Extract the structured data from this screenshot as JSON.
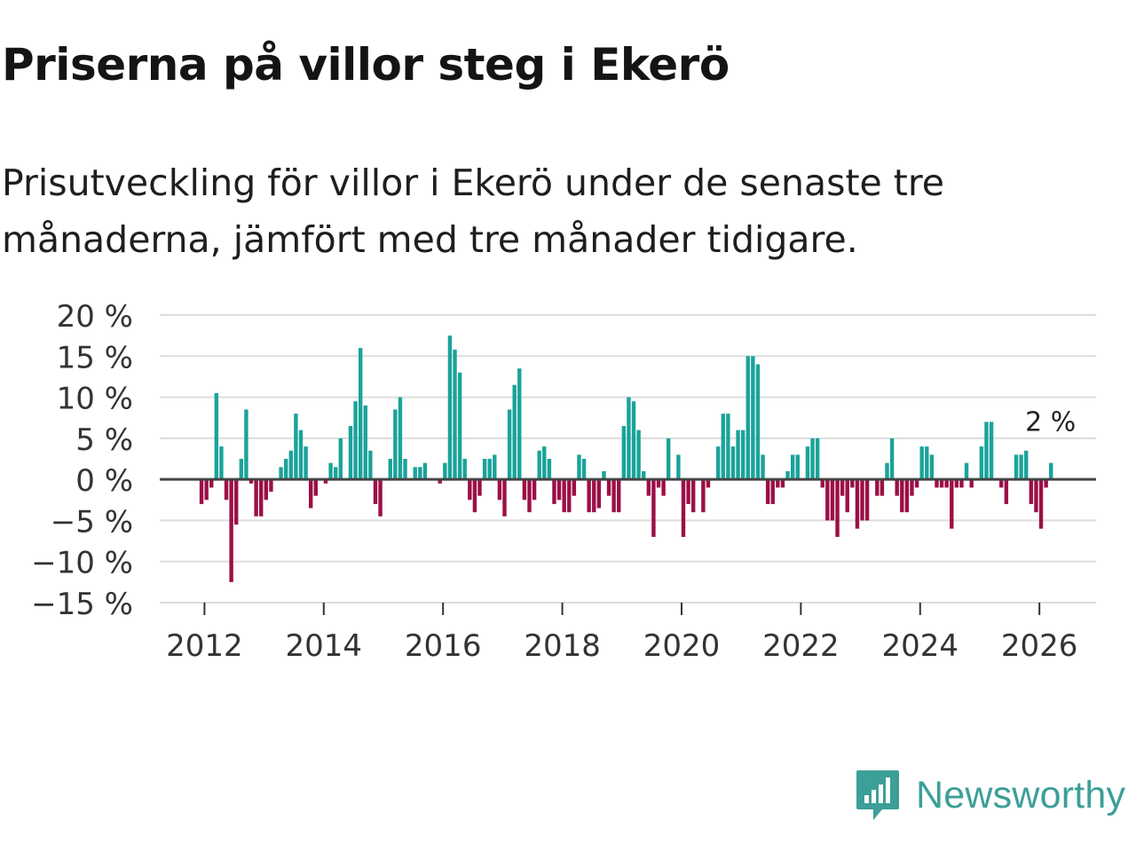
{
  "title": "Priserna på villor steg i Ekerö",
  "subtitle": "Prisutveckling för villor i Ekerö under de senaste tre månaderna, jämfört med tre månader tidigare.",
  "brand": {
    "name": "Newsworthy",
    "icon": "newsworthy-logo-icon"
  },
  "colors": {
    "positive": "#1aa39a",
    "negative": "#9c0f46",
    "grid": "#dddddd",
    "zero_line": "#444444",
    "brand": "#3c9f98"
  },
  "chart_data": {
    "type": "bar",
    "title": "Priserna på villor steg i Ekerö",
    "xlabel": "",
    "ylabel": "",
    "unit": "%",
    "start_year": 2011.95,
    "step_years": 0.0833,
    "xlim": [
      2011.25,
      2026.95
    ],
    "ylim": [
      -15,
      20
    ],
    "yticks": [
      20,
      15,
      10,
      5,
      0,
      -5,
      -10,
      -15
    ],
    "ytick_labels": [
      "20 %",
      "15 %",
      "10 %",
      "5 %",
      "0 %",
      "−5 %",
      "−10 %",
      "−15 %"
    ],
    "xticks": [
      2012,
      2014,
      2016,
      2018,
      2020,
      2022,
      2024,
      2026
    ],
    "xtick_labels": [
      "2012",
      "2014",
      "2016",
      "2018",
      "2020",
      "2022",
      "2024",
      "2026"
    ],
    "annotation": {
      "label": "2 %",
      "value": 2
    },
    "values": [
      -3,
      -2.5,
      -1,
      10.5,
      4,
      -2.5,
      -12.5,
      -5.5,
      2.5,
      8.5,
      -0.5,
      -4.5,
      -4.5,
      -2.5,
      -1.5,
      0,
      1.5,
      2.5,
      3.5,
      8,
      6,
      4,
      -3.5,
      -2,
      0,
      -0.5,
      2,
      1.5,
      5,
      0,
      6.5,
      9.5,
      16,
      9,
      3.5,
      -3,
      -4.5,
      0,
      2.5,
      8.5,
      10,
      2.5,
      0,
      1.5,
      1.5,
      2,
      0,
      0,
      -0.5,
      2,
      17.5,
      15.8,
      13,
      2.5,
      -2.5,
      -4,
      -2,
      2.5,
      2.5,
      3,
      -2.5,
      -4.5,
      8.5,
      11.5,
      13.5,
      -2.5,
      -4,
      -2.5,
      3.5,
      4,
      2.5,
      -3,
      -2.5,
      -4,
      -4,
      -2,
      3,
      2.5,
      -4,
      -4,
      -3.5,
      1,
      -2,
      -4,
      -4,
      6.5,
      10,
      9.5,
      6,
      1,
      -2,
      -7,
      -1,
      -2,
      5,
      0,
      3,
      -7,
      -3,
      -4,
      0,
      -4,
      -1,
      0,
      4,
      8,
      8,
      4,
      6,
      6,
      15,
      15,
      14,
      3,
      -3,
      -3,
      -1,
      -1,
      1,
      3,
      3,
      0,
      4,
      5,
      5,
      -1,
      -5,
      -5,
      -7,
      -2,
      -4,
      -1,
      -6,
      -5,
      -5,
      0,
      -2,
      -2,
      2,
      5,
      -2,
      -4,
      -4,
      -2,
      -1,
      4,
      4,
      3,
      -1,
      -1,
      -1,
      -6,
      -1,
      -1,
      2,
      -1,
      0,
      4,
      7,
      7,
      0,
      -1,
      -3,
      0,
      3,
      3,
      3.5,
      -3,
      -4,
      -6,
      -1,
      2
    ]
  }
}
